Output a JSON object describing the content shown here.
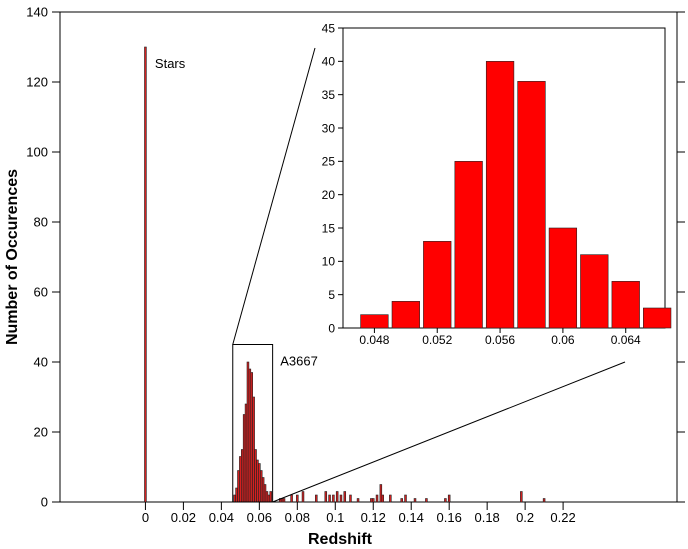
{
  "chart_data": [
    {
      "id": "main",
      "type": "bar",
      "xlabel": "Redshift",
      "ylabel": "Number of Occurences",
      "xlim": [
        -0.045,
        0.28
      ],
      "ylim": [
        0,
        140
      ],
      "xticks": [
        0,
        0.02,
        0.04,
        0.06,
        0.08,
        0.1,
        0.12,
        0.14,
        0.16,
        0.18,
        0.2,
        0.22
      ],
      "xtick_labels": [
        "0",
        "0.02",
        "0.04",
        "0.06",
        "0.08",
        "0.1",
        "0.12",
        "0.14",
        "0.16",
        "0.18",
        "0.2",
        "0.22"
      ],
      "yticks": [
        0,
        20,
        40,
        60,
        80,
        100,
        120,
        140
      ],
      "ytick_labels": [
        "0",
        "20",
        "40",
        "60",
        "80",
        "100",
        "120",
        "140"
      ],
      "bar_color": "#d42020",
      "bin_width": 0.001,
      "x": [
        0.0,
        0.047,
        0.048,
        0.049,
        0.05,
        0.051,
        0.052,
        0.053,
        0.054,
        0.055,
        0.056,
        0.057,
        0.058,
        0.059,
        0.06,
        0.061,
        0.062,
        0.063,
        0.064,
        0.065,
        0.066,
        0.071,
        0.072,
        0.073,
        0.077,
        0.08,
        0.083,
        0.09,
        0.095,
        0.097,
        0.099,
        0.101,
        0.103,
        0.105,
        0.108,
        0.112,
        0.119,
        0.12,
        0.122,
        0.124,
        0.125,
        0.129,
        0.135,
        0.137,
        0.142,
        0.148,
        0.158,
        0.16,
        0.198,
        0.21
      ],
      "values": [
        130,
        2,
        4,
        9,
        13,
        15,
        25,
        28,
        40,
        38,
        37,
        30,
        15,
        12,
        11,
        9,
        7,
        5,
        3,
        2,
        3,
        1,
        1,
        1,
        2,
        2,
        3,
        2,
        3,
        2,
        2,
        3,
        2,
        3,
        2,
        1,
        1,
        1,
        2,
        5,
        2,
        2,
        1,
        2,
        1,
        1,
        1,
        2,
        3,
        1
      ],
      "annotations": [
        {
          "text": "Stars",
          "x": 0.005,
          "y": 124
        },
        {
          "text": "A3667",
          "x": 0.071,
          "y": 39
        }
      ],
      "zoom_box": {
        "x": [
          0.046,
          0.067
        ],
        "y": [
          0,
          45
        ]
      }
    },
    {
      "id": "inset",
      "type": "bar",
      "xlim": [
        0.046,
        0.0665
      ],
      "ylim": [
        0,
        45
      ],
      "xticks": [
        0.048,
        0.052,
        0.056,
        0.06,
        0.064
      ],
      "xtick_labels": [
        "0.048",
        "0.052",
        "0.056",
        "0.06",
        "0.064"
      ],
      "yticks": [
        0,
        5,
        10,
        15,
        20,
        25,
        30,
        35,
        40,
        45
      ],
      "ytick_labels": [
        "0",
        "5",
        "10",
        "15",
        "20",
        "25",
        "30",
        "35",
        "40",
        "45"
      ],
      "bar_color": "#ff0000",
      "bin_width": 0.002,
      "x": [
        0.048,
        0.05,
        0.052,
        0.054,
        0.056,
        0.058,
        0.06,
        0.062,
        0.064,
        0.066
      ],
      "values": [
        2,
        4,
        13,
        25,
        40,
        37,
        15,
        11,
        7,
        3
      ]
    }
  ]
}
